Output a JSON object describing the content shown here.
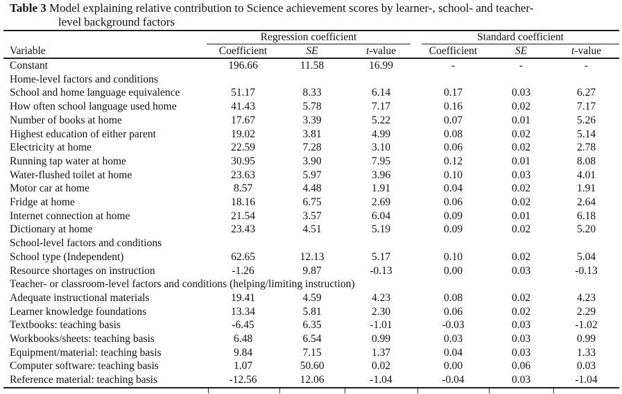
{
  "colors": {
    "background": "#ffffff",
    "text": "#111111",
    "rule": "#1d1d1d"
  },
  "title": {
    "prefix": "Table 3",
    "line1": " Model explaining relative contribution to Science achievement scores by learner-, school- and teacher-",
    "line2": "level background factors"
  },
  "table": {
    "spanners": {
      "regression": "Regression coefficient",
      "standard": "Standard coefficient"
    },
    "columns": {
      "variable": "Variable",
      "coefficient": "Coefficient",
      "se": "SE",
      "t_prefix": "t",
      "t_suffix": "-value"
    },
    "rows": [
      {
        "type": "data",
        "label": "Constant",
        "values": [
          "196.66",
          "11.58",
          "16.99",
          "-",
          "-",
          "-"
        ]
      },
      {
        "type": "section",
        "label": "Home-level factors and conditions"
      },
      {
        "type": "data",
        "label": "School and home language equivalence",
        "values": [
          "51.17",
          "8.33",
          "6.14",
          "0.17",
          "0.03",
          "6.27"
        ]
      },
      {
        "type": "data",
        "label": "How often school language used home",
        "values": [
          "41.43",
          "5.78",
          "7.17",
          "0.16",
          "0.02",
          "7.17"
        ]
      },
      {
        "type": "data",
        "label": "Number of books at home",
        "values": [
          "17.67",
          "3.39",
          "5.22",
          "0.07",
          "0.01",
          "5.26"
        ]
      },
      {
        "type": "data",
        "label": "Highest education of either parent",
        "values": [
          "19.02",
          "3.81",
          "4.99",
          "0.08",
          "0.02",
          "5.14"
        ]
      },
      {
        "type": "data",
        "label": "Electricity at home",
        "values": [
          "22.59",
          "7.28",
          "3.10",
          "0.06",
          "0.02",
          "2.78"
        ]
      },
      {
        "type": "data",
        "label": "Running tap water at home",
        "values": [
          "30.95",
          "3.90",
          "7.95",
          "0.12",
          "0.01",
          "8.08"
        ]
      },
      {
        "type": "data",
        "label": "Water-flushed toilet at home",
        "values": [
          "23.63",
          "5.97",
          "3.96",
          "0.10",
          "0.03",
          "4.01"
        ]
      },
      {
        "type": "data",
        "label": "Motor car at home",
        "values": [
          "8.57",
          "4.48",
          "1.91",
          "0.04",
          "0.02",
          "1.91"
        ]
      },
      {
        "type": "data",
        "label": "Fridge at home",
        "values": [
          "18.16",
          "6.75",
          "2.69",
          "0.06",
          "0.02",
          "2.64"
        ]
      },
      {
        "type": "data",
        "label": "Internet connection at home",
        "values": [
          "21.54",
          "3.57",
          "6.04",
          "0.09",
          "0.01",
          "6.18"
        ]
      },
      {
        "type": "data",
        "label": "Dictionary at home",
        "values": [
          "23.43",
          "4.51",
          "5.19",
          "0.09",
          "0.02",
          "5.20"
        ]
      },
      {
        "type": "section",
        "label": "School-level factors and conditions"
      },
      {
        "type": "data",
        "label": "School type (Independent)",
        "values": [
          "62.65",
          "12.13",
          "5.17",
          "0.10",
          "0.02",
          "5.04"
        ]
      },
      {
        "type": "data",
        "label": "Resource shortages on instruction",
        "values": [
          "-1.26",
          "9.87",
          "-0.13",
          "0.00",
          "0.03",
          "-0.13"
        ]
      },
      {
        "type": "section",
        "label": "Teacher- or classroom-level factors and conditions (helping/limiting instruction)"
      },
      {
        "type": "data",
        "label": "Adequate instructional materials",
        "values": [
          "19.41",
          "4.59",
          "4.23",
          "0.08",
          "0.02",
          "4.23"
        ]
      },
      {
        "type": "data",
        "label": "Learner knowledge foundations",
        "values": [
          "13.34",
          "5.81",
          "2.30",
          "0.06",
          "0.02",
          "2.29"
        ]
      },
      {
        "type": "data",
        "label": "Textbooks: teaching basis",
        "values": [
          "-6.45",
          "6.35",
          "-1.01",
          "-0.03",
          "0.03",
          "-1.02"
        ]
      },
      {
        "type": "data",
        "label": "Workbooks/sheets: teaching basis",
        "values": [
          "6.48",
          "6.54",
          "0.99",
          "0.03",
          "0.03",
          "0.99"
        ]
      },
      {
        "type": "data",
        "label": "Equipment/material: teaching basis",
        "values": [
          "9.84",
          "7.15",
          "1.37",
          "0.04",
          "0.03",
          "1.33"
        ]
      },
      {
        "type": "data",
        "label": "Computer software: teaching basis",
        "values": [
          "1.07",
          "50.60",
          "0.02",
          "0.00",
          "0.06",
          "0.03"
        ]
      },
      {
        "type": "data",
        "label": "Reference material: teaching basis",
        "values": [
          "-12.56",
          "12.06",
          "-1.04",
          "-0.04",
          "0.03",
          "-1.04"
        ]
      }
    ]
  }
}
